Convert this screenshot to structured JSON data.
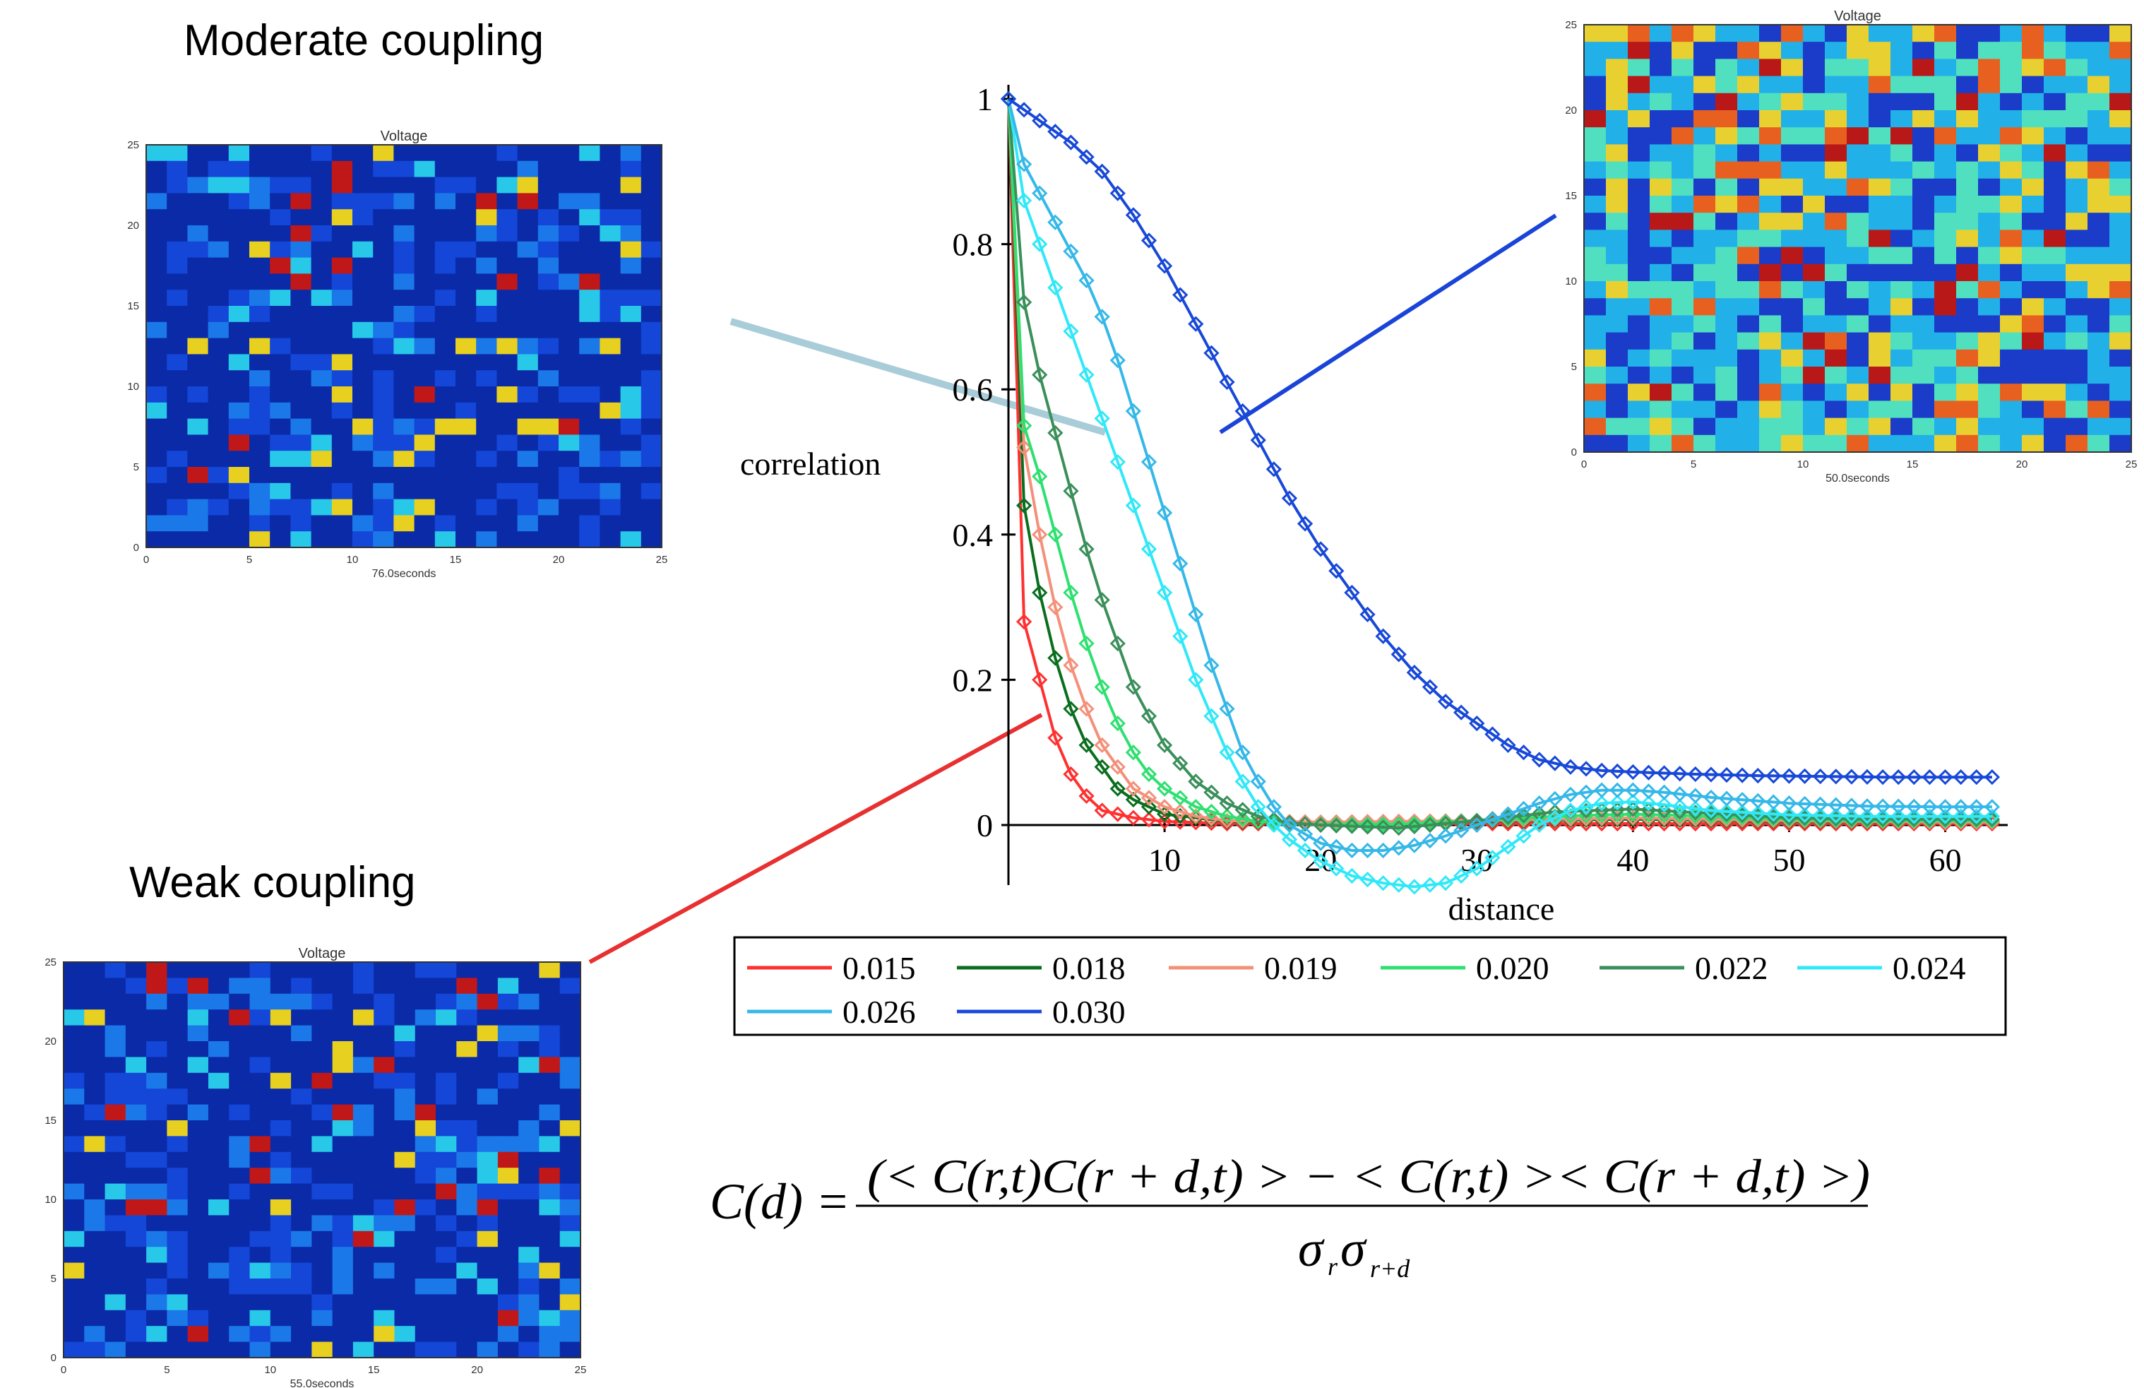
{
  "titles": {
    "moderate": "Moderate coupling",
    "weak": "Weak coupling"
  },
  "panels": {
    "moderate": {
      "title": "Voltage",
      "xlabel": "76.0seconds",
      "xticks": [
        "0",
        "5",
        "10",
        "15",
        "20",
        "25"
      ],
      "yticks": [
        "0",
        "5",
        "10",
        "15",
        "20",
        "25"
      ]
    },
    "strong": {
      "title": "Voltage",
      "xlabel": "50.0seconds",
      "xticks": [
        "0",
        "5",
        "10",
        "15",
        "20",
        "25"
      ],
      "yticks": [
        "0",
        "5",
        "10",
        "15",
        "20",
        "25"
      ]
    },
    "weak": {
      "title": "Voltage",
      "xlabel": "55.0seconds",
      "xticks": [
        "0",
        "5",
        "10",
        "15",
        "20",
        "25"
      ],
      "yticks": [
        "0",
        "5",
        "10",
        "15",
        "20",
        "25"
      ]
    }
  },
  "heatmap_colors": {
    "low": "#0a2db8",
    "mid": "#1fb8e8",
    "high": "#e8d020",
    "max": "#c81818"
  },
  "chart_data": {
    "type": "line",
    "xlabel": "distance",
    "ylabel": "correlation",
    "xlim": [
      0,
      64
    ],
    "ylim": [
      0,
      1
    ],
    "xticks": [
      10,
      20,
      30,
      40,
      50,
      60
    ],
    "yticks": [
      0,
      0.2,
      0.4,
      0.6,
      0.8,
      1
    ],
    "ytick_labels": [
      "0",
      "0.2",
      "0.4",
      "0.6",
      "0.8",
      "1"
    ],
    "legend_position": "below",
    "series": [
      {
        "name": "0.015",
        "color": "#ff3030",
        "marker": "diamond",
        "x": [
          0,
          1,
          2,
          3,
          4,
          5,
          6,
          8,
          10,
          14,
          20,
          30,
          40,
          50,
          60,
          63
        ],
        "y": [
          1,
          0.28,
          0.2,
          0.12,
          0.07,
          0.04,
          0.02,
          0.01,
          0.005,
          0.002,
          0.002,
          0.002,
          0.002,
          0.002,
          0.002,
          0.002
        ]
      },
      {
        "name": "0.018",
        "color": "#0a6e1e",
        "marker": "diamond",
        "x": [
          0,
          1,
          2,
          3,
          4,
          5,
          6,
          7,
          8,
          10,
          12,
          14,
          20,
          30,
          40,
          50,
          60,
          63
        ],
        "y": [
          1,
          0.44,
          0.32,
          0.23,
          0.16,
          0.11,
          0.08,
          0.05,
          0.035,
          0.015,
          0.01,
          0.005,
          0.003,
          0.005,
          0.008,
          0.005,
          0.004,
          0.004
        ]
      },
      {
        "name": "0.019",
        "color": "#f4907a",
        "marker": "diamond",
        "x": [
          0,
          1,
          2,
          3,
          4,
          5,
          6,
          7,
          8,
          10,
          12,
          14,
          20,
          30,
          40,
          50,
          60,
          63
        ],
        "y": [
          1,
          0.52,
          0.4,
          0.3,
          0.22,
          0.16,
          0.11,
          0.08,
          0.05,
          0.025,
          0.012,
          0.006,
          0.004,
          0.006,
          0.01,
          0.006,
          0.004,
          0.004
        ]
      },
      {
        "name": "0.020",
        "color": "#2ee070",
        "marker": "diamond",
        "x": [
          0,
          1,
          2,
          3,
          4,
          5,
          6,
          7,
          8,
          9,
          10,
          12,
          14,
          16,
          18,
          20,
          25,
          30,
          35,
          40,
          45,
          50,
          55,
          60,
          63
        ],
        "y": [
          1,
          0.55,
          0.48,
          0.4,
          0.32,
          0.25,
          0.19,
          0.14,
          0.1,
          0.07,
          0.05,
          0.025,
          0.012,
          0.005,
          0.002,
          0.001,
          0.001,
          0.006,
          0.012,
          0.015,
          0.012,
          0.008,
          0.006,
          0.006,
          0.006
        ]
      },
      {
        "name": "0.022",
        "color": "#3a8f5a",
        "marker": "diamond",
        "x": [
          0,
          1,
          2,
          3,
          4,
          5,
          6,
          7,
          8,
          9,
          10,
          12,
          14,
          16,
          18,
          20,
          25,
          30,
          35,
          40,
          45,
          50,
          55,
          60,
          63
        ],
        "y": [
          1,
          0.72,
          0.62,
          0.54,
          0.46,
          0.38,
          0.31,
          0.25,
          0.19,
          0.15,
          0.11,
          0.06,
          0.03,
          0.012,
          0.003,
          0.0,
          -0.004,
          0.006,
          0.018,
          0.022,
          0.016,
          0.01,
          0.008,
          0.008,
          0.008
        ]
      },
      {
        "name": "0.024",
        "color": "#30e8f8",
        "marker": "diamond",
        "x": [
          0,
          1,
          2,
          3,
          4,
          5,
          6,
          7,
          8,
          9,
          10,
          11,
          12,
          13,
          14,
          15,
          16,
          17,
          18,
          20,
          22,
          24,
          26,
          28,
          30,
          32,
          34,
          36,
          38,
          40,
          42,
          45,
          50,
          55,
          60,
          63
        ],
        "y": [
          1,
          0.86,
          0.8,
          0.74,
          0.68,
          0.62,
          0.56,
          0.5,
          0.44,
          0.38,
          0.32,
          0.26,
          0.2,
          0.15,
          0.1,
          0.06,
          0.025,
          0.0,
          -0.02,
          -0.05,
          -0.07,
          -0.08,
          -0.085,
          -0.08,
          -0.06,
          -0.03,
          0.0,
          0.02,
          0.03,
          0.032,
          0.028,
          0.02,
          0.014,
          0.012,
          0.012,
          0.012
        ]
      },
      {
        "name": "0.026",
        "color": "#35b8e8",
        "marker": "diamond",
        "x": [
          0,
          1,
          2,
          3,
          4,
          5,
          6,
          7,
          8,
          9,
          10,
          11,
          12,
          13,
          14,
          15,
          16,
          17,
          18,
          20,
          22,
          24,
          26,
          28,
          30,
          32,
          34,
          36,
          38,
          40,
          42,
          45,
          50,
          55,
          60,
          63
        ],
        "y": [
          1,
          0.91,
          0.87,
          0.83,
          0.79,
          0.75,
          0.7,
          0.64,
          0.57,
          0.5,
          0.43,
          0.36,
          0.29,
          0.22,
          0.16,
          0.1,
          0.06,
          0.025,
          0.0,
          -0.025,
          -0.035,
          -0.035,
          -0.028,
          -0.015,
          0.0,
          0.015,
          0.03,
          0.042,
          0.048,
          0.048,
          0.045,
          0.038,
          0.03,
          0.026,
          0.025,
          0.025
        ]
      },
      {
        "name": "0.030",
        "color": "#1848d8",
        "marker": "diamond",
        "x": [
          0,
          2,
          4,
          6,
          8,
          10,
          12,
          14,
          16,
          18,
          20,
          22,
          24,
          26,
          28,
          30,
          32,
          34,
          36,
          38,
          40,
          44,
          48,
          52,
          56,
          60,
          63
        ],
        "y": [
          1,
          0.97,
          0.94,
          0.9,
          0.84,
          0.77,
          0.69,
          0.61,
          0.53,
          0.45,
          0.38,
          0.32,
          0.26,
          0.21,
          0.17,
          0.14,
          0.11,
          0.09,
          0.08,
          0.075,
          0.073,
          0.07,
          0.068,
          0.067,
          0.066,
          0.066,
          0.066
        ]
      }
    ]
  },
  "formula": {
    "lhs": "C(d) =",
    "numerator": "(< C(r,t)C(r + d,t) > − < C(r,t) >< C(r + d,t) >)",
    "denominator_main": "σ",
    "denominator_sub1": "r",
    "denominator_main2": "σ",
    "denominator_sub2": "r+d"
  }
}
